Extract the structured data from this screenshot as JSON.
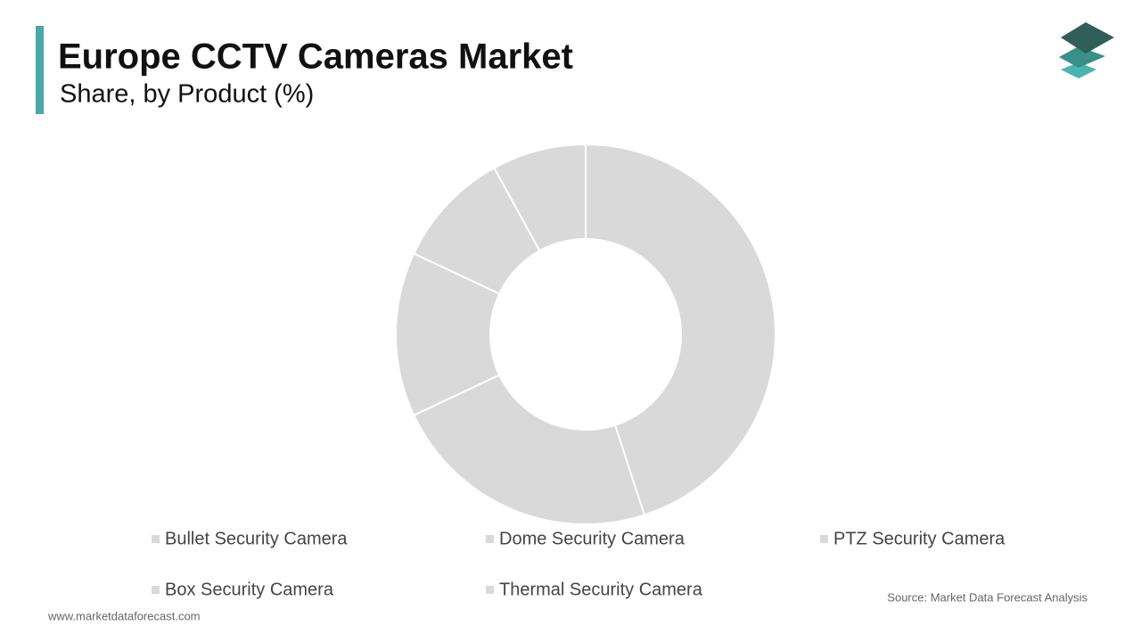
{
  "chart_data": {
    "type": "donut",
    "title": "Europe CCTV Cameras Market",
    "subtitle": "Share, by Product (%)",
    "categories": [
      "Bullet Security Camera",
      "Dome Security Camera",
      "PTZ Security Camera",
      "Box Security Camera",
      "Thermal Security Camera"
    ],
    "values": [
      45,
      23,
      14,
      10,
      8
    ],
    "color": "#d9d9d9",
    "source": "Source: Market Data Forecast Analysis",
    "website": "www.marketdataforecast.com"
  }
}
